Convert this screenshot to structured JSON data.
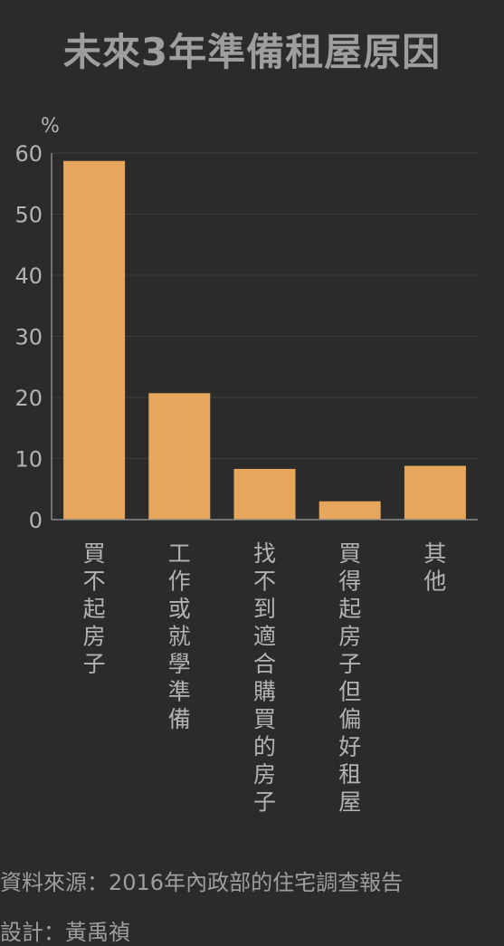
{
  "chart_data": {
    "type": "bar",
    "title": "未來3年準備租屋原因",
    "ylabel": "%",
    "xlabel": "",
    "ylim": [
      0,
      60
    ],
    "yticks": [
      0,
      10,
      20,
      30,
      40,
      50,
      60
    ],
    "grid": true,
    "categories": [
      "買不起房子",
      "工作或就學準備",
      "找不到適合購買的房子",
      "買得起房子但偏好租屋",
      "其他"
    ],
    "values": [
      58.7,
      20.7,
      8.3,
      3.0,
      8.8
    ]
  },
  "colors": {
    "background": "#2b2b2b",
    "bar": "#e6a75c",
    "grid": "#3d3d3d",
    "axis": "#8a8a8a",
    "text": "#b3b3b3"
  },
  "footer": {
    "source": "資料來源：2016年內政部的住宅調查報告",
    "designer": "設計：黃禹禎"
  }
}
